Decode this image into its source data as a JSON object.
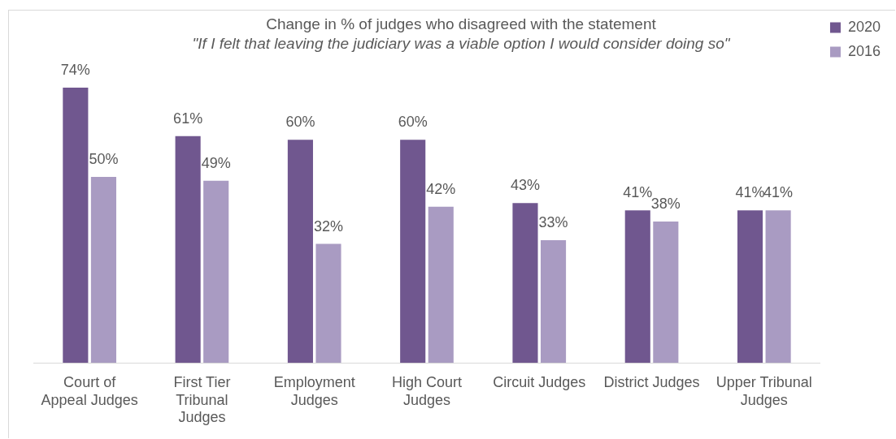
{
  "chart_data": {
    "type": "bar",
    "title": "Change in % of judges who disagreed with the statement",
    "subtitle": "\"If I felt that leaving the judiciary was a viable option I would consider doing so\"",
    "categories": [
      "Court of Appeal Judges",
      "First Tier Tribunal Judges",
      "Employment Judges",
      "High Court Judges",
      "Circuit Judges",
      "District Judges",
      "Upper Tribunal Judges"
    ],
    "series": [
      {
        "name": "2020",
        "color": "#70578f",
        "values": [
          74,
          61,
          60,
          60,
          43,
          41,
          41
        ],
        "value_labels": [
          "74%",
          "61%",
          "60%",
          "60%",
          "43%",
          "41%",
          "41%"
        ]
      },
      {
        "name": "2016",
        "color": "#a99bc2",
        "values": [
          50,
          49,
          32,
          42,
          33,
          38,
          41
        ],
        "value_labels": [
          "50%",
          "49%",
          "32%",
          "42%",
          "33%",
          "38%",
          "41%"
        ]
      }
    ],
    "tick_labels": "x",
    "grid": false,
    "legend": "top right"
  }
}
